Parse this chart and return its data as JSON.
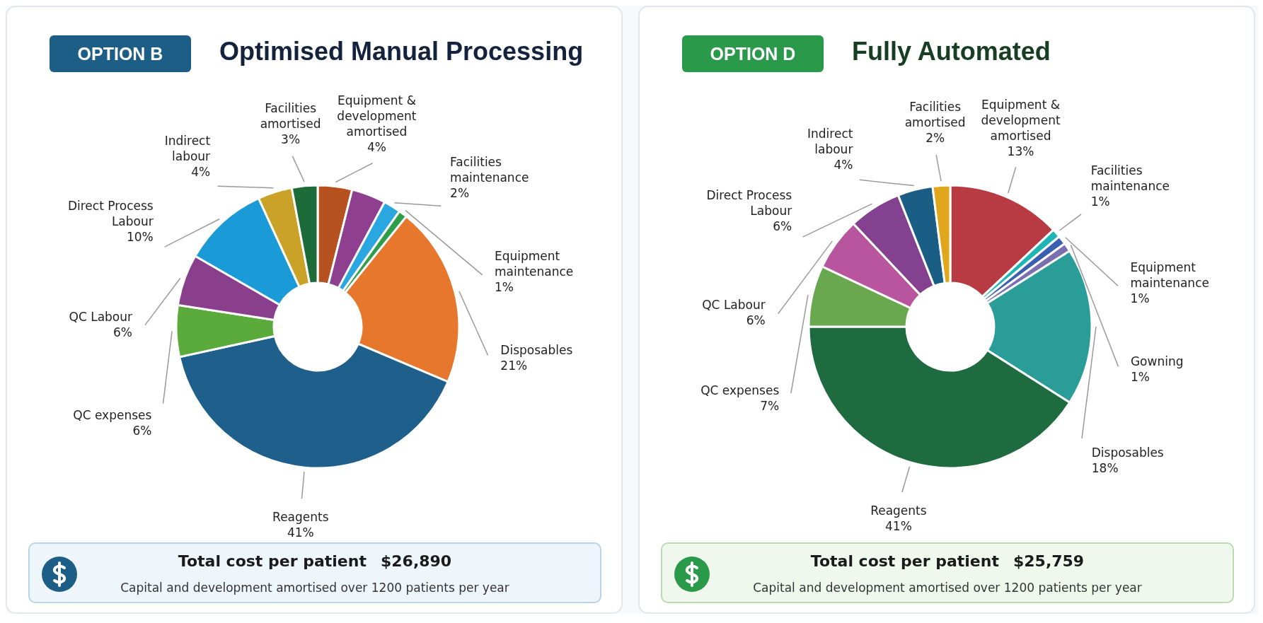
{
  "chart_data": [
    {
      "type": "donut",
      "subtitle": "OPTION B",
      "title": "Optimised Manual Processing",
      "categories": [
        "Equipment & development amortised",
        null,
        "Facilities maintenance",
        "Equipment maintenance",
        "Disposables",
        "Reagents",
        "QC expenses",
        "QC Labour",
        "Direct Process Labour",
        "Indirect labour",
        "Facilities amortised"
      ],
      "values": [
        4,
        4,
        2,
        1,
        21,
        41,
        6,
        6,
        10,
        4,
        3
      ],
      "value_labels": [
        "4%",
        null,
        "2%",
        "1%",
        "21%",
        "41%",
        "6%",
        "6%",
        "10%",
        "4%",
        "3%"
      ],
      "colors": [
        "#b5521f",
        "#8e3f8f",
        "#2aa7e0",
        "#2e9e48",
        "#e8772e",
        "#1f5f8b",
        "#5aaa3c",
        "#8a3f8c",
        "#1a9ad6",
        "#c9a227",
        "#1e6b3a"
      ],
      "annotations": [
        "Total cost per patient",
        "$26,890",
        "Capital and development amortised over 1200 patients per year"
      ]
    },
    {
      "type": "donut",
      "subtitle": "OPTION D",
      "title": "Fully Automated",
      "categories": [
        "Equipment & development amortised",
        "Facilities maintenance",
        "Equipment maintenance",
        "Gowning",
        "Disposables",
        "Reagents",
        "QC expenses",
        "QC Labour",
        "Direct Process Labour",
        "Indirect labour",
        "Facilities amortised"
      ],
      "values": [
        13,
        1,
        1,
        1,
        18,
        41,
        7,
        6,
        6,
        4,
        2
      ],
      "value_labels": [
        "13%",
        "1%",
        "1%",
        "1%",
        "18%",
        "41%",
        "7%",
        "6%",
        "6%",
        "4%",
        "2%"
      ],
      "colors": [
        "#b83a42",
        "#1fb5b5",
        "#3a5fb0",
        "#7a6fb0",
        "#2a9d98",
        "#1e6b3f",
        "#6aa84f",
        "#b9559e",
        "#83418f",
        "#1a5e85",
        "#e0a61c"
      ],
      "annotations": [
        "Total cost per patient",
        "$25,759",
        "Capital and development amortised over 1200 patients per year"
      ]
    }
  ]
}
